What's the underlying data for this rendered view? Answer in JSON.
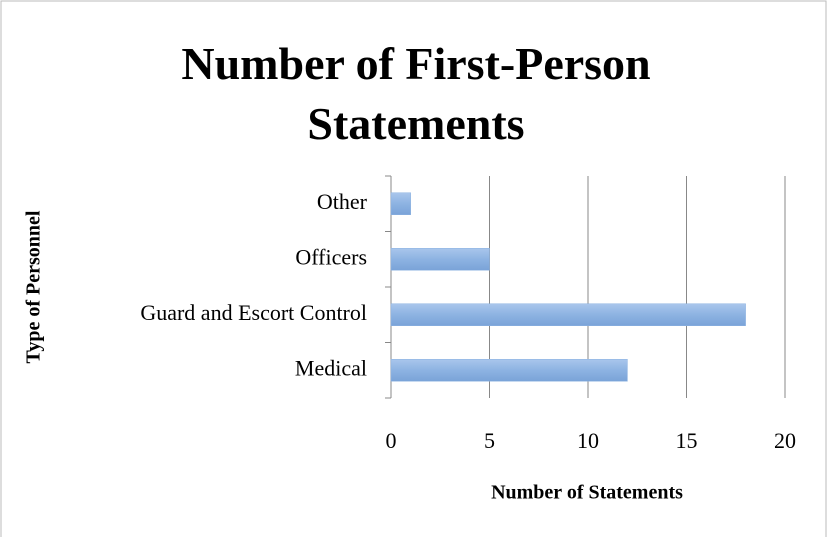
{
  "chart_data": {
    "type": "bar",
    "orientation": "horizontal",
    "title": "Number of First-Person Statements",
    "x_label": "Number of Statements",
    "y_label": "Type of Personnel",
    "categories": [
      "Medical",
      "Guard and Escort Control",
      "Officers",
      "Other"
    ],
    "values": [
      12,
      18,
      5,
      1
    ],
    "color": "#8db3e2",
    "xlim": [
      0,
      20
    ],
    "xticks": [
      0,
      5,
      10,
      15,
      20
    ],
    "grid": true
  }
}
